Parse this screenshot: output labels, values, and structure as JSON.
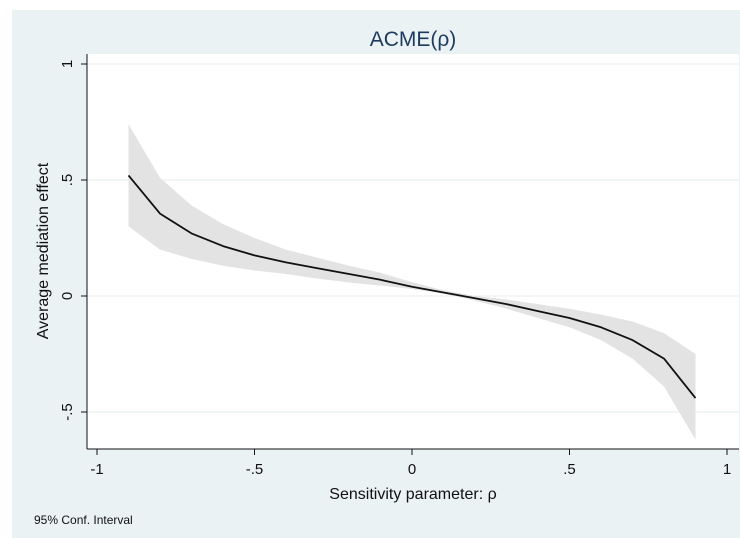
{
  "chart_data": {
    "type": "line",
    "title": "ACME(ρ)",
    "xlabel": "Sensitivity parameter: ρ",
    "ylabel": "Average mediation effect",
    "note": "95% Conf. Interval",
    "xlim": [
      -1,
      1
    ],
    "ylim": [
      -0.6,
      1.05
    ],
    "xticks": [
      -1,
      -0.5,
      0,
      0.5,
      1
    ],
    "xtick_labels": [
      "-1",
      "-.5",
      "0",
      ".5",
      "1"
    ],
    "yticks": [
      1,
      0.5,
      0,
      -0.5
    ],
    "ytick_labels": [
      "1",
      ".5",
      "0",
      "-.5"
    ],
    "grid": true,
    "series": [
      {
        "x": [
          -0.9,
          -0.8,
          -0.7,
          -0.6,
          -0.5,
          -0.4,
          -0.3,
          -0.2,
          -0.1,
          0,
          0.1,
          0.2,
          0.3,
          0.4,
          0.5,
          0.6,
          0.7,
          0.8,
          0.9
        ],
        "values": [
          0.52,
          0.355,
          0.27,
          0.215,
          0.175,
          0.145,
          0.12,
          0.095,
          0.07,
          0.04,
          0.015,
          -0.01,
          -0.035,
          -0.065,
          -0.095,
          -0.135,
          -0.19,
          -0.27,
          -0.44
        ],
        "lower": [
          0.3,
          0.2,
          0.16,
          0.13,
          0.11,
          0.095,
          0.075,
          0.058,
          0.045,
          0.03,
          0.01,
          -0.02,
          -0.055,
          -0.095,
          -0.135,
          -0.19,
          -0.27,
          -0.39,
          -0.62
        ],
        "upper": [
          0.74,
          0.51,
          0.39,
          0.31,
          0.25,
          0.2,
          0.165,
          0.13,
          0.1,
          0.06,
          0.025,
          0.0,
          -0.015,
          -0.035,
          -0.055,
          -0.08,
          -0.11,
          -0.16,
          -0.25
        ],
        "color": "#111111",
        "band_color": "#e3e3e3"
      }
    ]
  }
}
